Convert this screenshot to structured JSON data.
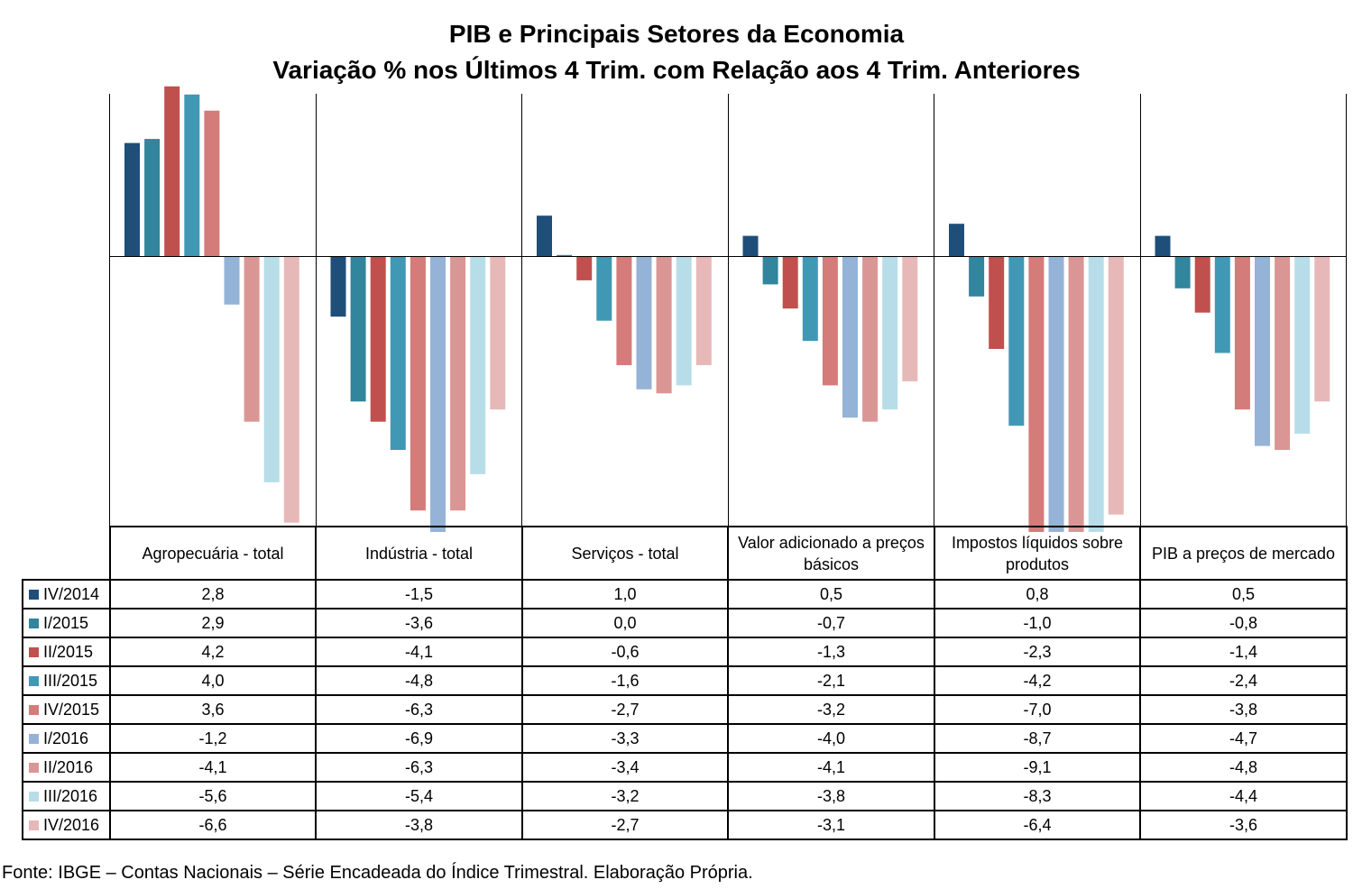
{
  "title": {
    "line1": "PIB e Principais Setores da Economia",
    "line2": "Variação % nos Últimos 4 Trim. com Relação aos  4 Trim. Anteriores"
  },
  "source": "Fonte: IBGE – Contas Nacionais – Série Encadeada do Índice Trimestral. Elaboração Própria.",
  "chart_data": {
    "type": "bar",
    "title": "PIB e Principais Setores da Economia — Variação % nos Últimos 4 Trim. com Relação aos  4 Trim. Anteriores",
    "categories": [
      "Agropecuária - total",
      "Indústria - total",
      "Serviços - total",
      "Valor adicionado a preços básicos",
      "Impostos líquidos sobre produtos",
      "PIB a preços de mercado"
    ],
    "ylim": [
      -10,
      6
    ],
    "grid": false,
    "legend": "data table below chart",
    "series": [
      {
        "name": "IV/2014",
        "color": "#1F4E79",
        "values": [
          2.8,
          -1.5,
          1.0,
          0.5,
          0.8,
          0.5
        ]
      },
      {
        "name": "I/2015",
        "color": "#31859C",
        "values": [
          2.9,
          -3.6,
          0.0,
          -0.7,
          -1.0,
          -0.8
        ]
      },
      {
        "name": "II/2015",
        "color": "#C0504D",
        "values": [
          4.2,
          -4.1,
          -0.6,
          -1.3,
          -2.3,
          -1.4
        ]
      },
      {
        "name": "III/2015",
        "color": "#4198B5",
        "values": [
          4.0,
          -4.8,
          -1.6,
          -2.1,
          -4.2,
          -2.4
        ]
      },
      {
        "name": "IV/2015",
        "color": "#D47C7A",
        "values": [
          3.6,
          -6.3,
          -2.7,
          -3.2,
          -7.0,
          -3.8
        ]
      },
      {
        "name": "I/2016",
        "color": "#95B3D7",
        "values": [
          -1.2,
          -6.9,
          -3.3,
          -4.0,
          -8.7,
          -4.7
        ]
      },
      {
        "name": "II/2016",
        "color": "#DA9694",
        "values": [
          -4.1,
          -6.3,
          -3.4,
          -4.1,
          -9.1,
          -4.8
        ]
      },
      {
        "name": "III/2016",
        "color": "#B7DEE8",
        "values": [
          -5.6,
          -5.4,
          -3.2,
          -3.8,
          -8.3,
          -4.4
        ]
      },
      {
        "name": "IV/2016",
        "color": "#E6B9B8",
        "values": [
          -6.6,
          -3.8,
          -2.7,
          -3.1,
          -6.4,
          -3.6
        ]
      }
    ]
  }
}
